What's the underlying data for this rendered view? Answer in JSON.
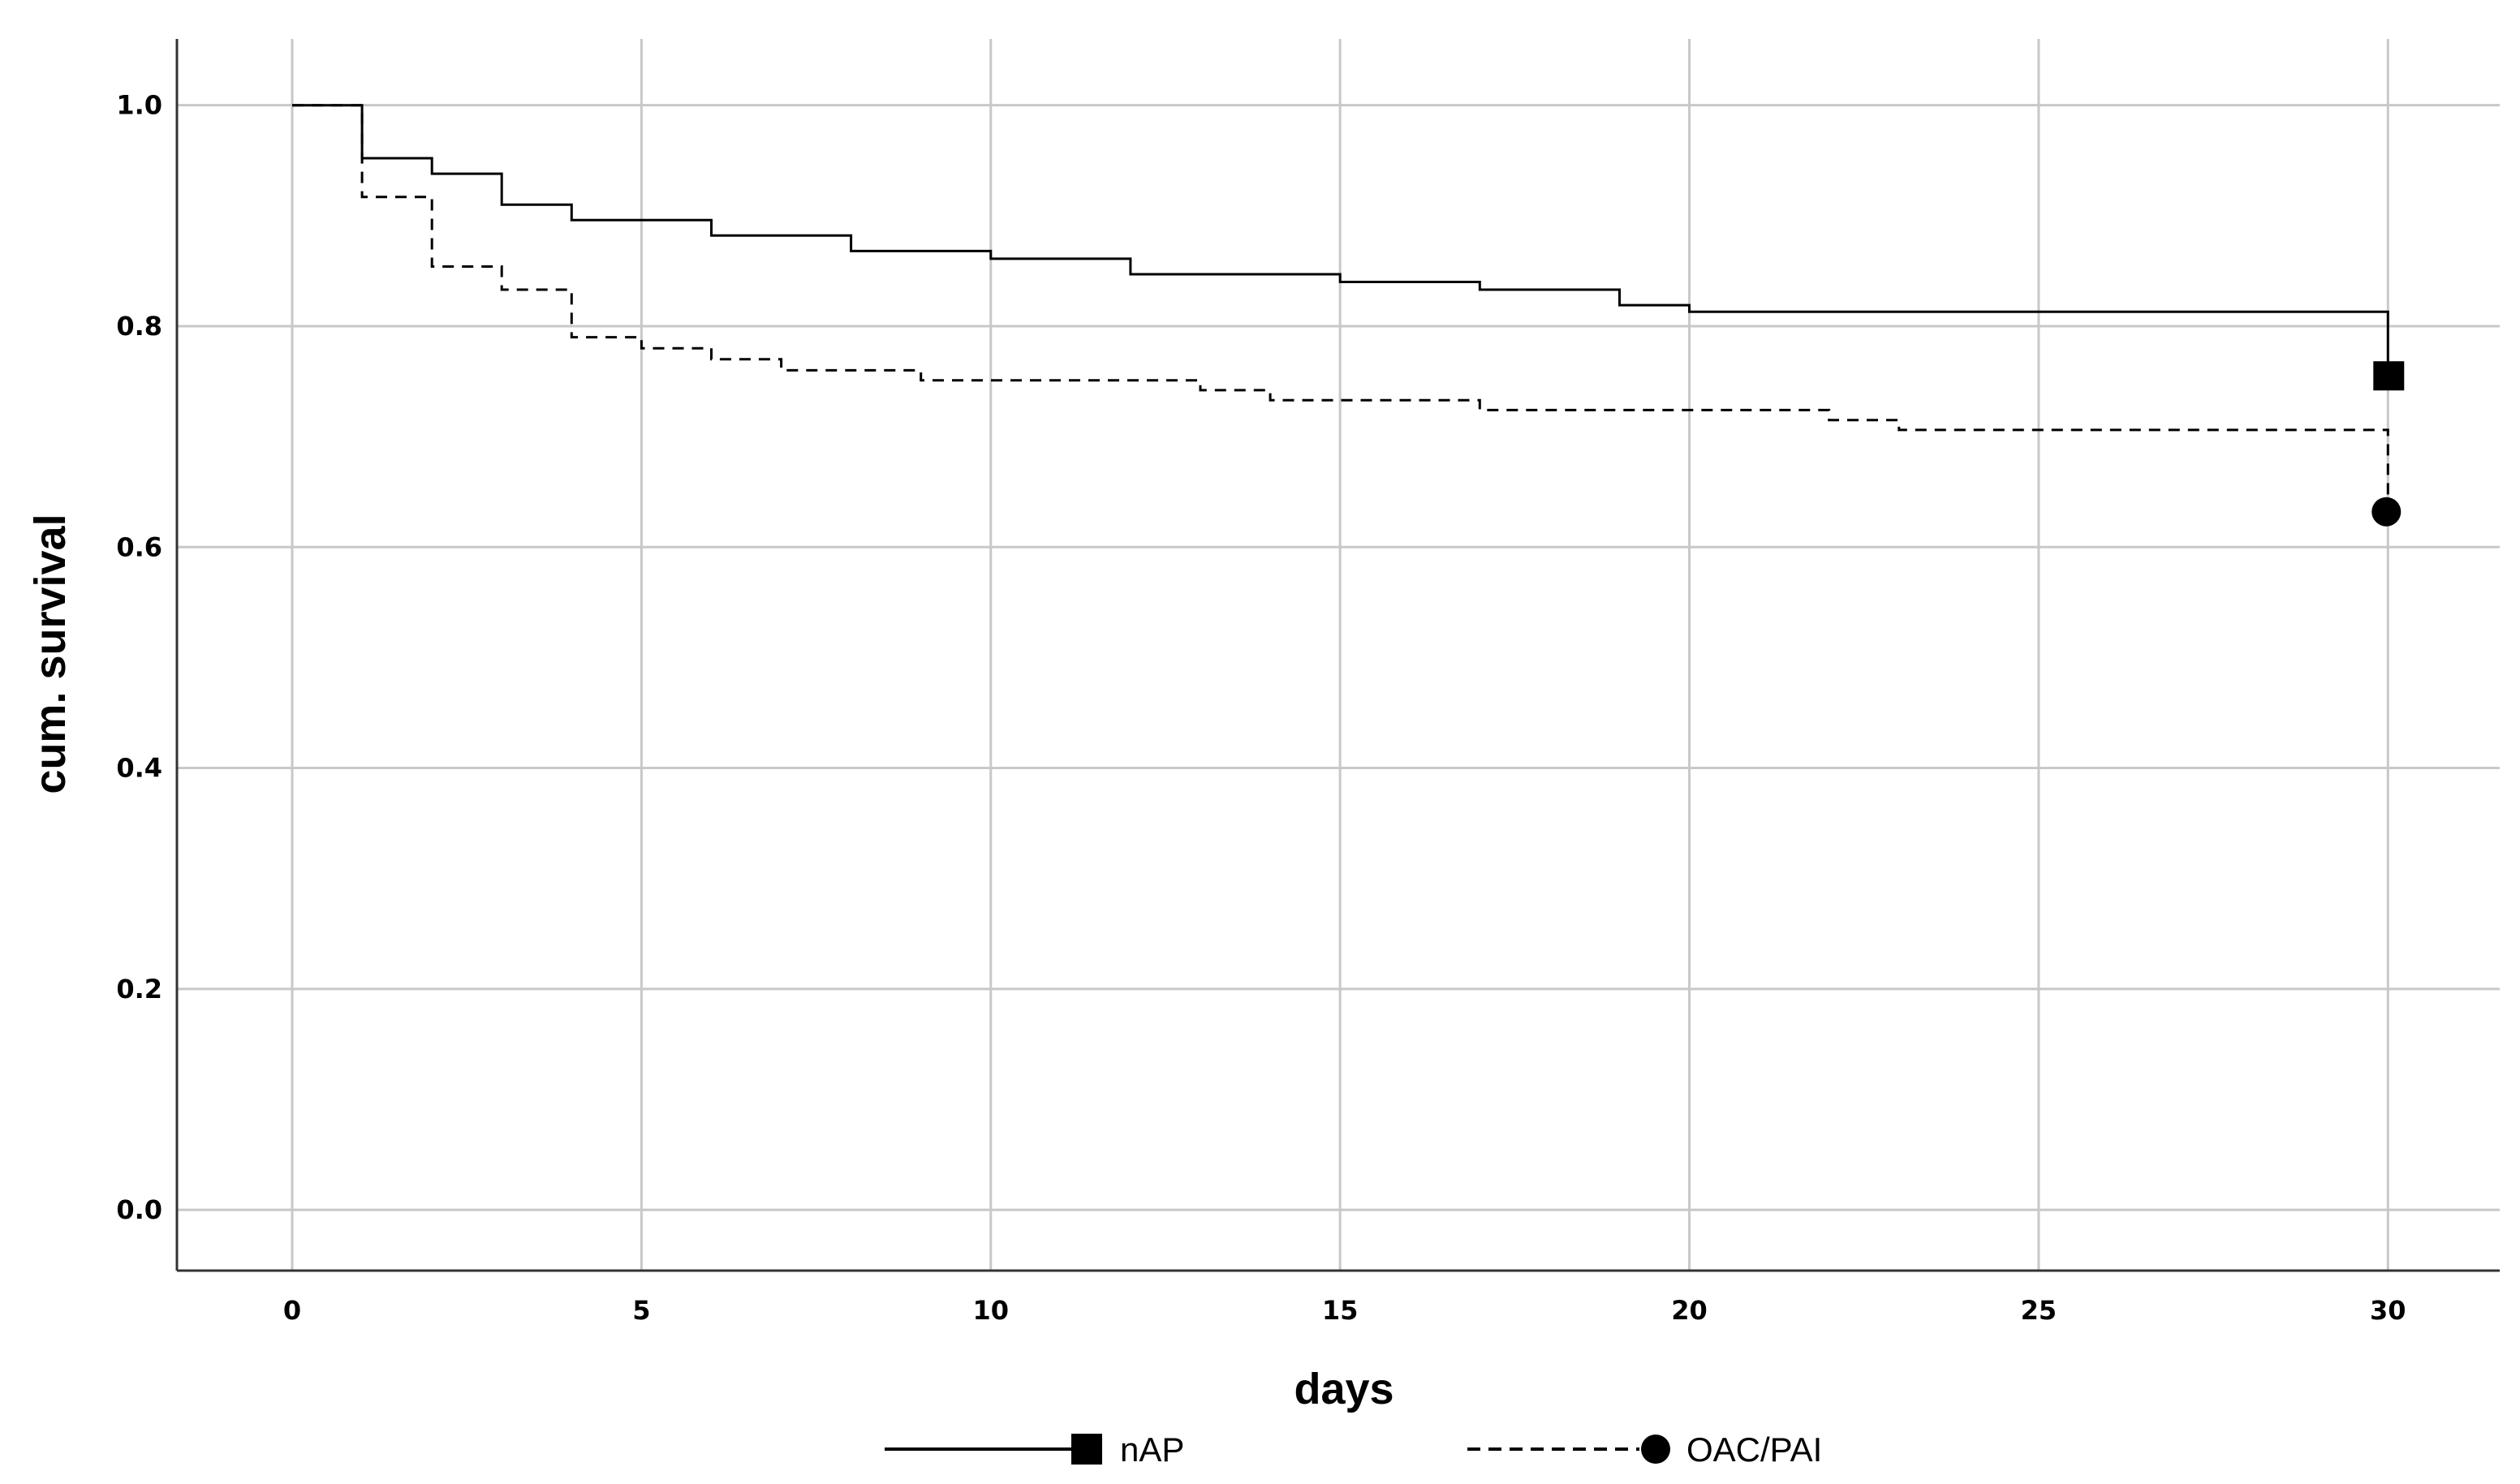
{
  "chart_data": {
    "type": "line",
    "subtype": "kaplan-meier step",
    "xlabel": "days",
    "ylabel": "cum. survival",
    "xlim": [
      -1.65,
      31.6
    ],
    "ylim": [
      -0.055,
      1.06
    ],
    "xticks": [
      0,
      5,
      10,
      15,
      20,
      25,
      30
    ],
    "xtick_labels": [
      "0",
      "5",
      "10",
      "15",
      "20",
      "25",
      "30"
    ],
    "yticks": [
      0.0,
      0.2,
      0.4,
      0.6,
      0.8,
      1.0
    ],
    "ytick_labels": [
      "0.0",
      "0.2",
      "0.4",
      "0.6",
      "0.8",
      "1.0"
    ],
    "grid": true,
    "legend_position": "bottom-center",
    "series": [
      {
        "name": "nAP",
        "line_style": "solid",
        "marker": "square",
        "color": "#000000",
        "x": [
          0,
          1,
          2,
          3,
          4,
          6,
          8,
          10,
          12,
          15,
          17,
          19,
          20,
          30
        ],
        "y": [
          1.0,
          0.952,
          0.938,
          0.91,
          0.896,
          0.882,
          0.868,
          0.861,
          0.847,
          0.84,
          0.833,
          0.819,
          0.813,
          0.755
        ],
        "end_marker": {
          "x": 30,
          "y": 0.755
        }
      },
      {
        "name": "OAC/PAI",
        "line_style": "dashed",
        "marker": "circle",
        "color": "#000000",
        "x": [
          0,
          1,
          2,
          3,
          4,
          5,
          6,
          7,
          9,
          13,
          14,
          17,
          22,
          23,
          30
        ],
        "y": [
          1.0,
          0.917,
          0.854,
          0.833,
          0.79,
          0.78,
          0.77,
          0.76,
          0.751,
          0.742,
          0.733,
          0.724,
          0.715,
          0.706,
          0.632
        ],
        "end_marker": {
          "x": 30,
          "y": 0.632
        }
      }
    ]
  }
}
